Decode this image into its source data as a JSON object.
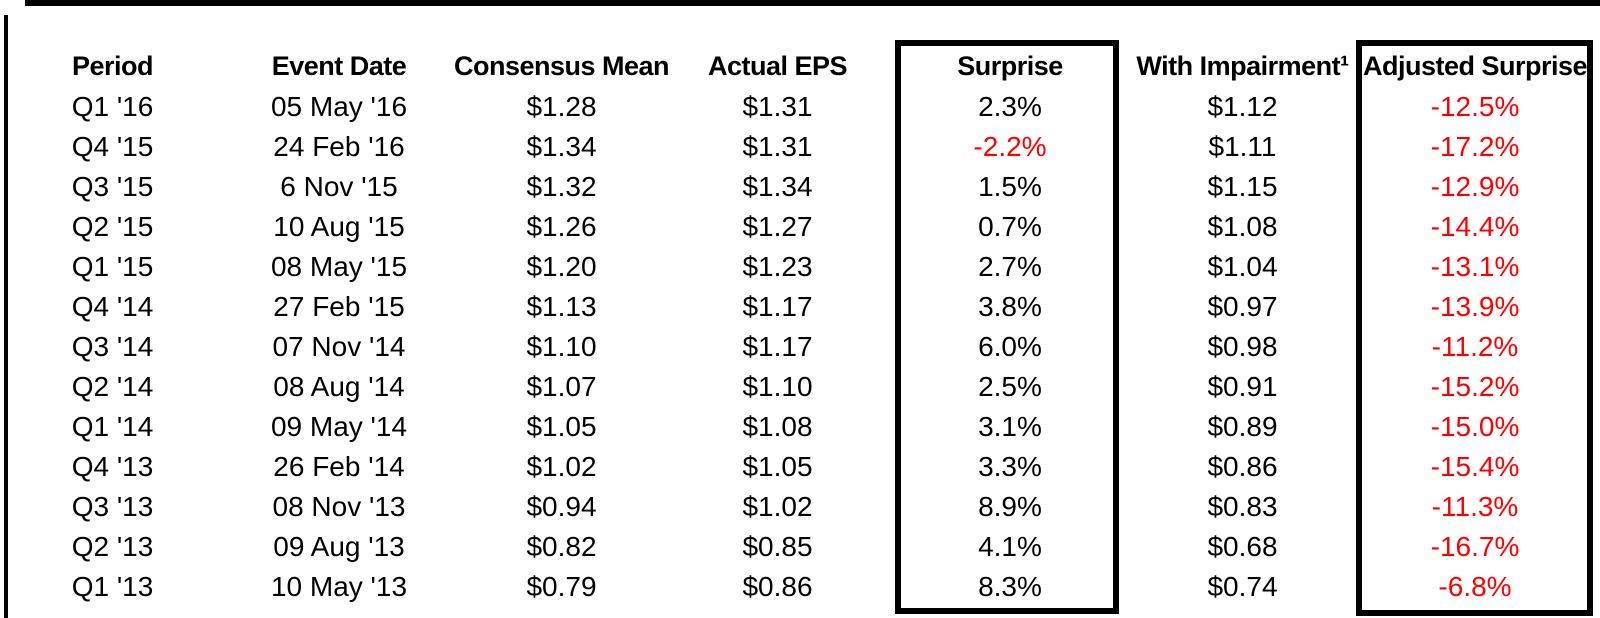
{
  "colors": {
    "background": "#ffffff",
    "text": "#000000",
    "border": "#000000",
    "negative": "#ff0000"
  },
  "chart_data": {
    "type": "table",
    "title": "",
    "highlighted_columns": [
      "surprise",
      "adjusted_surprise"
    ],
    "columns": [
      {
        "key": "period",
        "label": "Period",
        "boxed": false
      },
      {
        "key": "event_date",
        "label": "Event Date",
        "boxed": false
      },
      {
        "key": "consensus_mean",
        "label": "Consensus Mean",
        "boxed": false
      },
      {
        "key": "actual_eps",
        "label": "Actual EPS",
        "boxed": false
      },
      {
        "key": "surprise",
        "label": "Surprise",
        "boxed": true
      },
      {
        "key": "with_impairment",
        "label": "With Impairment¹",
        "boxed": false
      },
      {
        "key": "adjusted_surprise",
        "label": "Adjusted Surprise",
        "boxed": true
      }
    ],
    "rows": [
      {
        "period": "Q1 '16",
        "event_date": "05 May '16",
        "consensus_mean": "$1.28",
        "actual_eps": "$1.31",
        "surprise": "2.3%",
        "with_impairment": "$1.12",
        "adjusted_surprise": "-12.5%"
      },
      {
        "period": "Q4 '15",
        "event_date": "24 Feb '16",
        "consensus_mean": "$1.34",
        "actual_eps": "$1.31",
        "surprise": "-2.2%",
        "with_impairment": "$1.11",
        "adjusted_surprise": "-17.2%"
      },
      {
        "period": "Q3 '15",
        "event_date": "6 Nov '15",
        "consensus_mean": "$1.32",
        "actual_eps": "$1.34",
        "surprise": "1.5%",
        "with_impairment": "$1.15",
        "adjusted_surprise": "-12.9%"
      },
      {
        "period": "Q2 '15",
        "event_date": "10 Aug '15",
        "consensus_mean": "$1.26",
        "actual_eps": "$1.27",
        "surprise": "0.7%",
        "with_impairment": "$1.08",
        "adjusted_surprise": "-14.4%"
      },
      {
        "period": "Q1 '15",
        "event_date": "08 May '15",
        "consensus_mean": "$1.20",
        "actual_eps": "$1.23",
        "surprise": "2.7%",
        "with_impairment": "$1.04",
        "adjusted_surprise": "-13.1%"
      },
      {
        "period": "Q4 '14",
        "event_date": "27 Feb '15",
        "consensus_mean": "$1.13",
        "actual_eps": "$1.17",
        "surprise": "3.8%",
        "with_impairment": "$0.97",
        "adjusted_surprise": "-13.9%"
      },
      {
        "period": "Q3 '14",
        "event_date": "07 Nov '14",
        "consensus_mean": "$1.10",
        "actual_eps": "$1.17",
        "surprise": "6.0%",
        "with_impairment": "$0.98",
        "adjusted_surprise": "-11.2%"
      },
      {
        "period": "Q2 '14",
        "event_date": "08 Aug '14",
        "consensus_mean": "$1.07",
        "actual_eps": "$1.10",
        "surprise": "2.5%",
        "with_impairment": "$0.91",
        "adjusted_surprise": "-15.2%"
      },
      {
        "period": "Q1 '14",
        "event_date": "09 May '14",
        "consensus_mean": "$1.05",
        "actual_eps": "$1.08",
        "surprise": "3.1%",
        "with_impairment": "$0.89",
        "adjusted_surprise": "-15.0%"
      },
      {
        "period": "Q4 '13",
        "event_date": "26 Feb '14",
        "consensus_mean": "$1.02",
        "actual_eps": "$1.05",
        "surprise": "3.3%",
        "with_impairment": "$0.86",
        "adjusted_surprise": "-15.4%"
      },
      {
        "period": "Q3 '13",
        "event_date": "08 Nov '13",
        "consensus_mean": "$0.94",
        "actual_eps": "$1.02",
        "surprise": "8.9%",
        "with_impairment": "$0.83",
        "adjusted_surprise": "-11.3%"
      },
      {
        "period": "Q2 '13",
        "event_date": "09 Aug '13",
        "consensus_mean": "$0.82",
        "actual_eps": "$0.85",
        "surprise": "4.1%",
        "with_impairment": "$0.68",
        "adjusted_surprise": "-16.7%"
      },
      {
        "period": "Q1 '13",
        "event_date": "10 May '13",
        "consensus_mean": "$0.79",
        "actual_eps": "$0.86",
        "surprise": "8.3%",
        "with_impairment": "$0.74",
        "adjusted_surprise": "-6.8%"
      }
    ]
  }
}
